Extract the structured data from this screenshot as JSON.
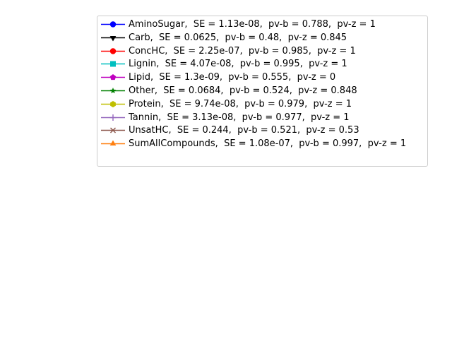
{
  "chart_data": {
    "type": "line",
    "title": "",
    "xlabel": "",
    "ylabel": "",
    "axes_visible": false,
    "grid": false,
    "legend_placement": "top-right",
    "series": [
      {
        "label": "AminoSugar,  SE = 1.13e-08,  pv-b = 0.788,  pv-z = 1",
        "color": "#0000ff",
        "marker": "circle"
      },
      {
        "label": "Carb,  SE = 0.0625,  pv-b = 0.48,  pv-z = 0.845",
        "color": "#000000",
        "marker": "triangle-down"
      },
      {
        "label": "ConcHC,  SE = 2.25e-07,  pv-b = 0.985,  pv-z = 1",
        "color": "#ff0000",
        "marker": "circle"
      },
      {
        "label": "Lignin,  SE = 4.07e-08,  pv-b = 0.995,  pv-z = 1",
        "color": "#00bfbf",
        "marker": "square"
      },
      {
        "label": "Lipid,  SE = 1.3e-09,  pv-b = 0.555,  pv-z = 0",
        "color": "#bf00bf",
        "marker": "pentagon"
      },
      {
        "label": "Other,  SE = 0.0684,  pv-b = 0.524,  pv-z = 0.848",
        "color": "#008000",
        "marker": "star"
      },
      {
        "label": "Protein,  SE = 9.74e-08,  pv-b = 0.979,  pv-z = 1",
        "color": "#bfbf00",
        "marker": "hexagon"
      },
      {
        "label": "Tannin,  SE = 3.13e-08,  pv-b = 0.977,  pv-z = 1",
        "color": "#9467bd",
        "marker": "plus"
      },
      {
        "label": "UnsatHC,  SE = 0.244,  pv-b = 0.521,  pv-z = 0.53",
        "color": "#8c564b",
        "marker": "x"
      },
      {
        "label": "SumAllCompounds,  SE = 1.08e-07,  pv-b = 0.997,  pv-z = 1",
        "color": "#ff7f0e",
        "marker": "triangle-up"
      }
    ]
  }
}
